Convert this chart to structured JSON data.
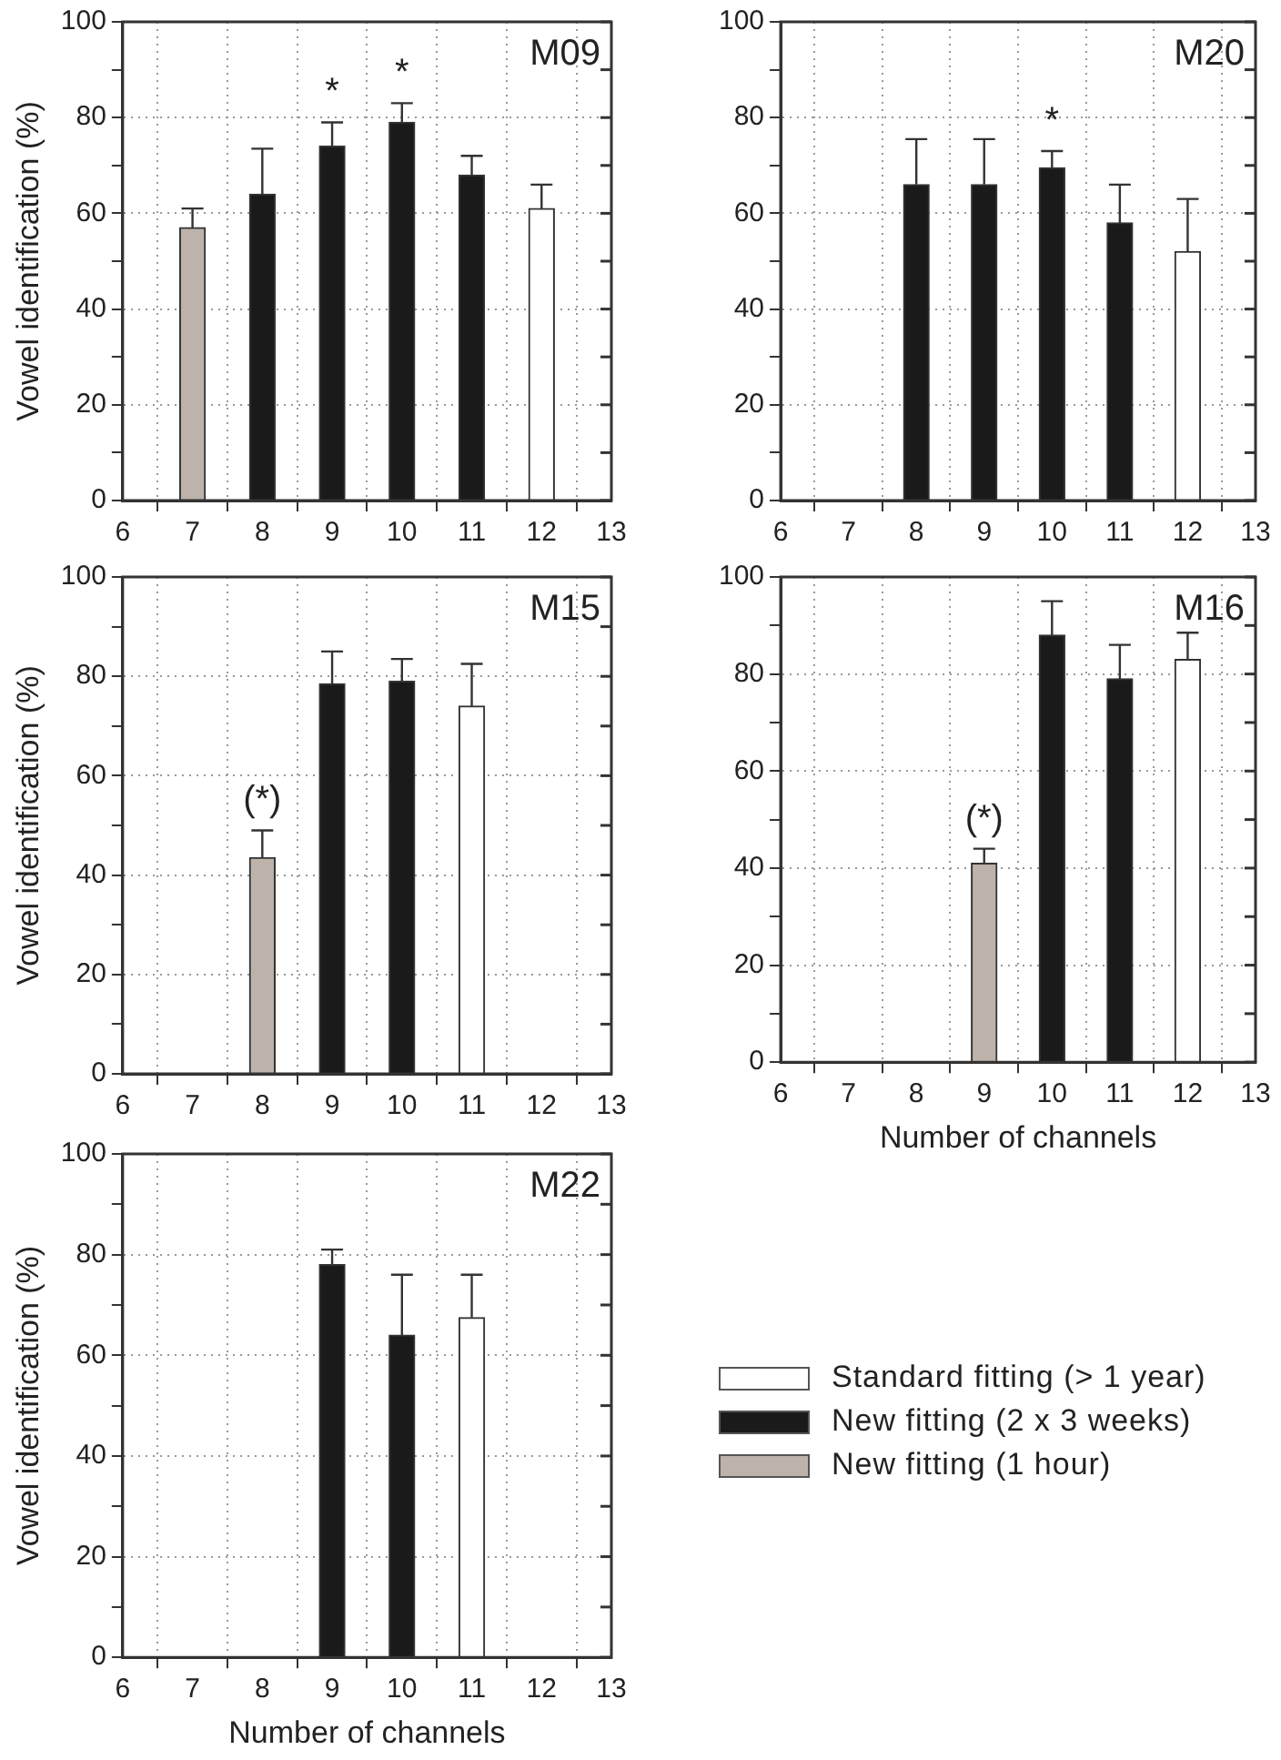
{
  "chart_data": [
    {
      "type": "bar",
      "title": "M09",
      "ylabel": "Vowel identification (%)",
      "xlim": [
        6,
        13
      ],
      "xticks": [
        6,
        7,
        8,
        9,
        10,
        11,
        12,
        13
      ],
      "ylim": [
        0,
        100
      ],
      "yticks": [
        0,
        {
          "value": 10,
          "label": null
        },
        20,
        {
          "value": 30,
          "label": null
        },
        40,
        {
          "value": 50,
          "label": null
        },
        60,
        {
          "value": 70,
          "label": null
        },
        80,
        {
          "value": 90,
          "label": null
        },
        100
      ],
      "grid": true,
      "series": [
        {
          "color": "#bdb3ab",
          "x": [
            7
          ],
          "values": [
            57
          ],
          "errors": [
            [
              57,
              61
            ]
          ]
        },
        {
          "color": "#1a1a1a",
          "x": [
            8,
            9,
            10,
            11
          ],
          "values": [
            64,
            74,
            79,
            68
          ],
          "errors": [
            [
              64,
              73.5
            ],
            [
              74,
              79
            ],
            [
              79,
              83
            ],
            [
              68,
              72
            ]
          ]
        },
        {
          "color": "#ffffff",
          "x": [
            12
          ],
          "values": [
            61
          ],
          "errors": [
            [
              61,
              66
            ]
          ]
        }
      ],
      "annotations": [
        {
          "text": "*",
          "x": 9,
          "y": 74
        },
        {
          "text": "*",
          "x": 10,
          "y": 79
        }
      ]
    },
    {
      "type": "bar",
      "title": "M20",
      "xlim": [
        6,
        13
      ],
      "xticks": [
        6,
        7,
        8,
        9,
        10,
        11,
        12,
        13
      ],
      "ylim": [
        0,
        100
      ],
      "yticks": [
        0,
        {
          "value": 10,
          "label": null
        },
        20,
        {
          "value": 30,
          "label": null
        },
        40,
        {
          "value": 50,
          "label": null
        },
        60,
        {
          "value": 70,
          "label": null
        },
        80,
        {
          "value": 90,
          "label": null
        },
        100
      ],
      "grid": true,
      "series": [
        {
          "color": "#1a1a1a",
          "x": [
            8,
            9,
            10,
            11
          ],
          "values": [
            66,
            66,
            69.5,
            58
          ],
          "errors": [
            [
              66,
              75.5
            ],
            [
              66,
              75.5
            ],
            [
              69.5,
              73
            ],
            [
              58,
              66
            ]
          ]
        },
        {
          "color": "#ffffff",
          "x": [
            12
          ],
          "values": [
            52
          ],
          "errors": [
            [
              52,
              63
            ]
          ]
        }
      ],
      "annotations": [
        {
          "text": "*",
          "x": 10,
          "y": 69.5
        }
      ]
    },
    {
      "type": "bar",
      "title": "M15",
      "ylabel": "Vowel identification (%)",
      "xlim": [
        6,
        13
      ],
      "xticks": [
        6,
        7,
        8,
        9,
        10,
        11,
        12,
        13
      ],
      "ylim": [
        0,
        100
      ],
      "yticks": [
        0,
        {
          "value": 10,
          "label": null
        },
        20,
        {
          "value": 30,
          "label": null
        },
        40,
        {
          "value": 50,
          "label": null
        },
        60,
        {
          "value": 70,
          "label": null
        },
        80,
        {
          "value": 90,
          "label": null
        },
        100
      ],
      "grid": true,
      "series": [
        {
          "color": "#bdb3ab",
          "x": [
            8
          ],
          "values": [
            43.5
          ],
          "errors": [
            [
              43.5,
              49
            ]
          ]
        },
        {
          "color": "#1a1a1a",
          "x": [
            9,
            10
          ],
          "values": [
            78.5,
            79
          ],
          "errors": [
            [
              78.5,
              85
            ],
            [
              79,
              83.5
            ]
          ]
        },
        {
          "color": "#ffffff",
          "x": [
            11
          ],
          "values": [
            74
          ],
          "errors": [
            [
              74,
              82.5
            ]
          ]
        }
      ],
      "annotations": [
        {
          "text": "(*)",
          "x": 8,
          "y": 43.5
        }
      ]
    },
    {
      "type": "bar",
      "title": "M16",
      "xlabel": "Number of channels",
      "xlim": [
        6,
        13
      ],
      "xticks": [
        6,
        7,
        8,
        9,
        10,
        11,
        12,
        13
      ],
      "ylim": [
        0,
        100
      ],
      "yticks": [
        0,
        {
          "value": 10,
          "label": null
        },
        20,
        {
          "value": 30,
          "label": null
        },
        40,
        {
          "value": 50,
          "label": null
        },
        60,
        {
          "value": 70,
          "label": null
        },
        80,
        {
          "value": 90,
          "label": null
        },
        100
      ],
      "grid": true,
      "series": [
        {
          "color": "#bdb3ab",
          "x": [
            9
          ],
          "values": [
            41
          ],
          "errors": [
            [
              41,
              44
            ]
          ]
        },
        {
          "color": "#1a1a1a",
          "x": [
            10,
            11
          ],
          "values": [
            88,
            79
          ],
          "errors": [
            [
              88,
              95
            ],
            [
              79,
              86
            ]
          ]
        },
        {
          "color": "#ffffff",
          "x": [
            12
          ],
          "values": [
            83
          ],
          "errors": [
            [
              83,
              88.5
            ]
          ]
        }
      ],
      "annotations": [
        {
          "text": "(*)",
          "x": 9,
          "y": 41
        }
      ]
    },
    {
      "type": "bar",
      "title": "M22",
      "xlabel": "Number of channels",
      "ylabel": "Vowel identification (%)",
      "xlim": [
        6,
        13
      ],
      "xticks": [
        6,
        7,
        8,
        9,
        10,
        11,
        12,
        13
      ],
      "ylim": [
        0,
        100
      ],
      "yticks": [
        0,
        {
          "value": 10,
          "label": null
        },
        20,
        {
          "value": 30,
          "label": null
        },
        40,
        {
          "value": 50,
          "label": null
        },
        60,
        {
          "value": 70,
          "label": null
        },
        80,
        {
          "value": 90,
          "label": null
        },
        100
      ],
      "grid": true,
      "legend": "right",
      "series": [
        {
          "name": "Standard fitting (> 1 year)",
          "color": "#ffffff",
          "x": [
            11
          ],
          "values": [
            67.5
          ],
          "errors": [
            [
              67.5,
              76
            ]
          ]
        },
        {
          "name": "New fitting (2 x 3 weeks)",
          "color": "#1a1a1a",
          "x": [
            9,
            10
          ],
          "values": [
            78,
            64
          ],
          "errors": [
            [
              78,
              81
            ],
            [
              64,
              76
            ]
          ]
        },
        {
          "name": "New fitting (1 hour)",
          "color": "#bdb3ab"
        }
      ]
    }
  ]
}
